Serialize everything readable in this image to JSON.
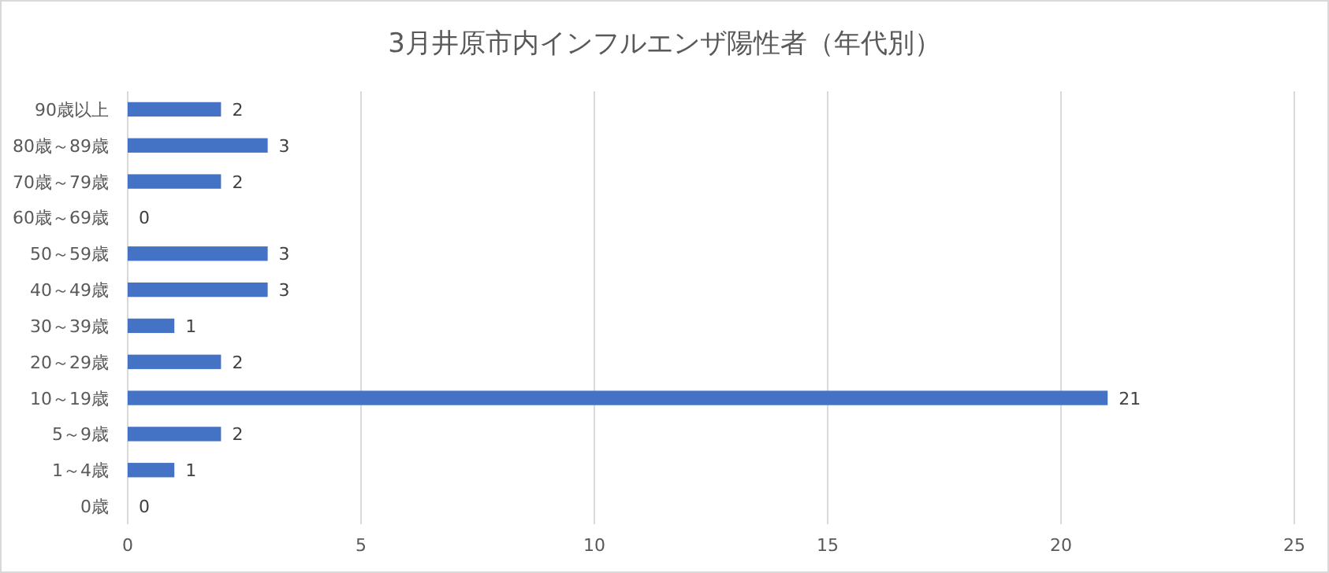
{
  "chart_data": {
    "type": "bar",
    "orientation": "horizontal",
    "title": "3月井原市内インフルエンザ陽性者（年代別）",
    "categories": [
      "90歳以上",
      "80歳～89歳",
      "70歳～79歳",
      "60歳～69歳",
      "50～59歳",
      "40～49歳",
      "30～39歳",
      "20～29歳",
      "10～19歳",
      "5～9歳",
      "1～4歳",
      "0歳"
    ],
    "values": [
      2,
      3,
      2,
      0,
      3,
      3,
      1,
      2,
      21,
      2,
      1,
      0
    ],
    "color": "#4472c4",
    "xlim": [
      0,
      25
    ],
    "xticks": [
      0,
      5,
      10,
      15,
      20,
      25
    ],
    "grid": "x",
    "data_labels": true
  }
}
